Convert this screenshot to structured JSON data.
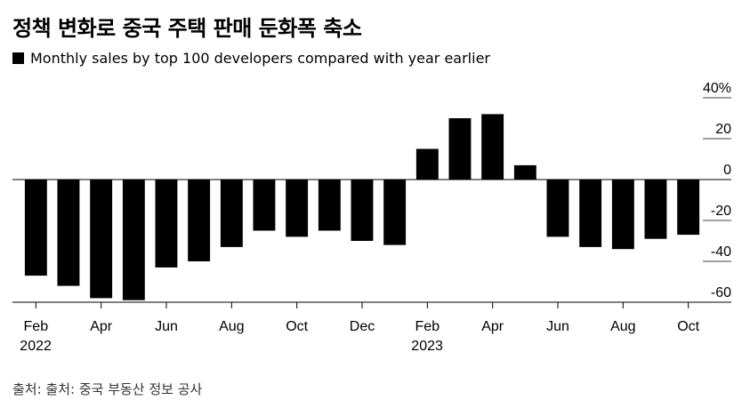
{
  "title": "정책 변화로 중국 주택 판매 둔화폭 축소",
  "source": "출처: 출처: 중국 부동산 정보 공사",
  "colors": {
    "bar": "#000000",
    "axis": "#000000",
    "grid": "#000000"
  },
  "chart_data": {
    "type": "bar",
    "title": "정책 변화로 중국 주택 판매 둔화폭 축소",
    "xlabel": "",
    "ylabel": "",
    "ylim": [
      -60,
      40
    ],
    "yticks": [
      "40%",
      "20",
      "0",
      "-20",
      "-40",
      "-60"
    ],
    "grid": false,
    "legend": "top-left",
    "categories": [
      "Feb 2022",
      "Mar 2022",
      "Apr 2022",
      "May 2022",
      "Jun 2022",
      "Jul 2022",
      "Aug 2022",
      "Sep 2022",
      "Oct 2022",
      "Nov 2022",
      "Dec 2022",
      "Jan 2023",
      "Feb 2023",
      "Mar 2023",
      "Apr 2023",
      "May 2023",
      "Jun 2023",
      "Jul 2023",
      "Aug 2023",
      "Sep 2023",
      "Oct 2023"
    ],
    "xtick_labels": [
      {
        "index": 0,
        "label": "Feb",
        "year": "2022"
      },
      {
        "index": 2,
        "label": "Apr",
        "year": ""
      },
      {
        "index": 4,
        "label": "Jun",
        "year": ""
      },
      {
        "index": 6,
        "label": "Aug",
        "year": ""
      },
      {
        "index": 8,
        "label": "Oct",
        "year": ""
      },
      {
        "index": 10,
        "label": "Dec",
        "year": ""
      },
      {
        "index": 12,
        "label": "Feb",
        "year": "2023"
      },
      {
        "index": 14,
        "label": "Apr",
        "year": ""
      },
      {
        "index": 16,
        "label": "Jun",
        "year": ""
      },
      {
        "index": 18,
        "label": "Aug",
        "year": ""
      },
      {
        "index": 20,
        "label": "Oct",
        "year": ""
      }
    ],
    "series": [
      {
        "name": "Monthly sales by top 100 developers compared with year earlier",
        "values": [
          -47,
          -52,
          -58,
          -59,
          -43,
          -40,
          -33,
          -25,
          -28,
          -25,
          -30,
          -32,
          15,
          30,
          32,
          7,
          -28,
          -33,
          -34,
          -29,
          -27
        ]
      }
    ]
  }
}
